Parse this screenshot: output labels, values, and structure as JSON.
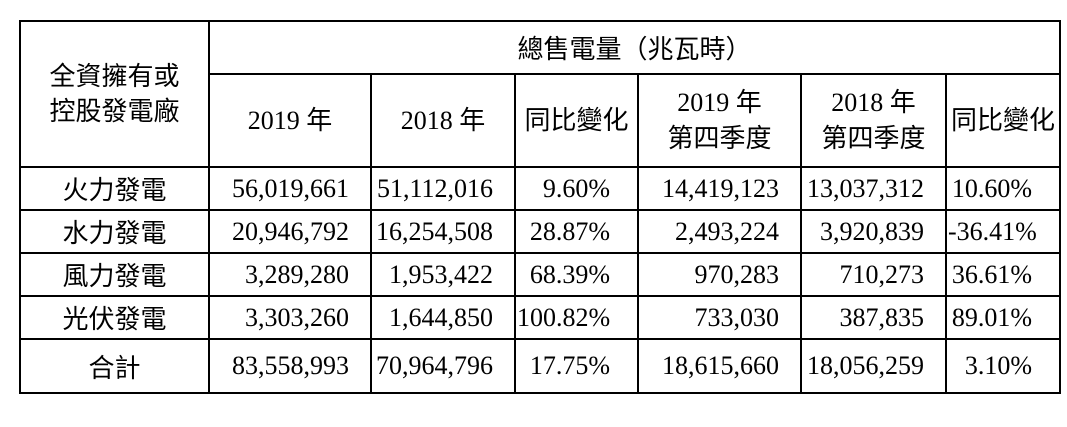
{
  "colors": {
    "background": "#ffffff",
    "border": "#000000",
    "text": "#000000"
  },
  "table": {
    "corner_header": "全資擁有或\n控股發電廠",
    "span_header": "總售電量（兆瓦時）",
    "columns": [
      "2019 年",
      "2018 年",
      "同比變化",
      "2019 年\n第四季度",
      "2018 年\n第四季度",
      "同比變化"
    ],
    "rows": [
      {
        "label": "火力發電",
        "values": [
          "56,019,661",
          "51,112,016",
          "9.60%",
          "14,419,123",
          "13,037,312",
          "10.60%"
        ]
      },
      {
        "label": "水力發電",
        "values": [
          "20,946,792",
          "16,254,508",
          "28.87%",
          "2,493,224",
          "3,920,839",
          "-36.41%"
        ]
      },
      {
        "label": "風力發電",
        "values": [
          "3,289,280",
          "1,953,422",
          "68.39%",
          "970,283",
          "710,273",
          "36.61%"
        ]
      },
      {
        "label": "光伏發電",
        "values": [
          "3,303,260",
          "1,644,850",
          "100.82%",
          "733,030",
          "387,835",
          "89.01%"
        ]
      }
    ],
    "total": {
      "label": "合計",
      "values": [
        "83,558,993",
        "70,964,796",
        "17.75%",
        "18,615,660",
        "18,056,259",
        "3.10%"
      ]
    }
  }
}
